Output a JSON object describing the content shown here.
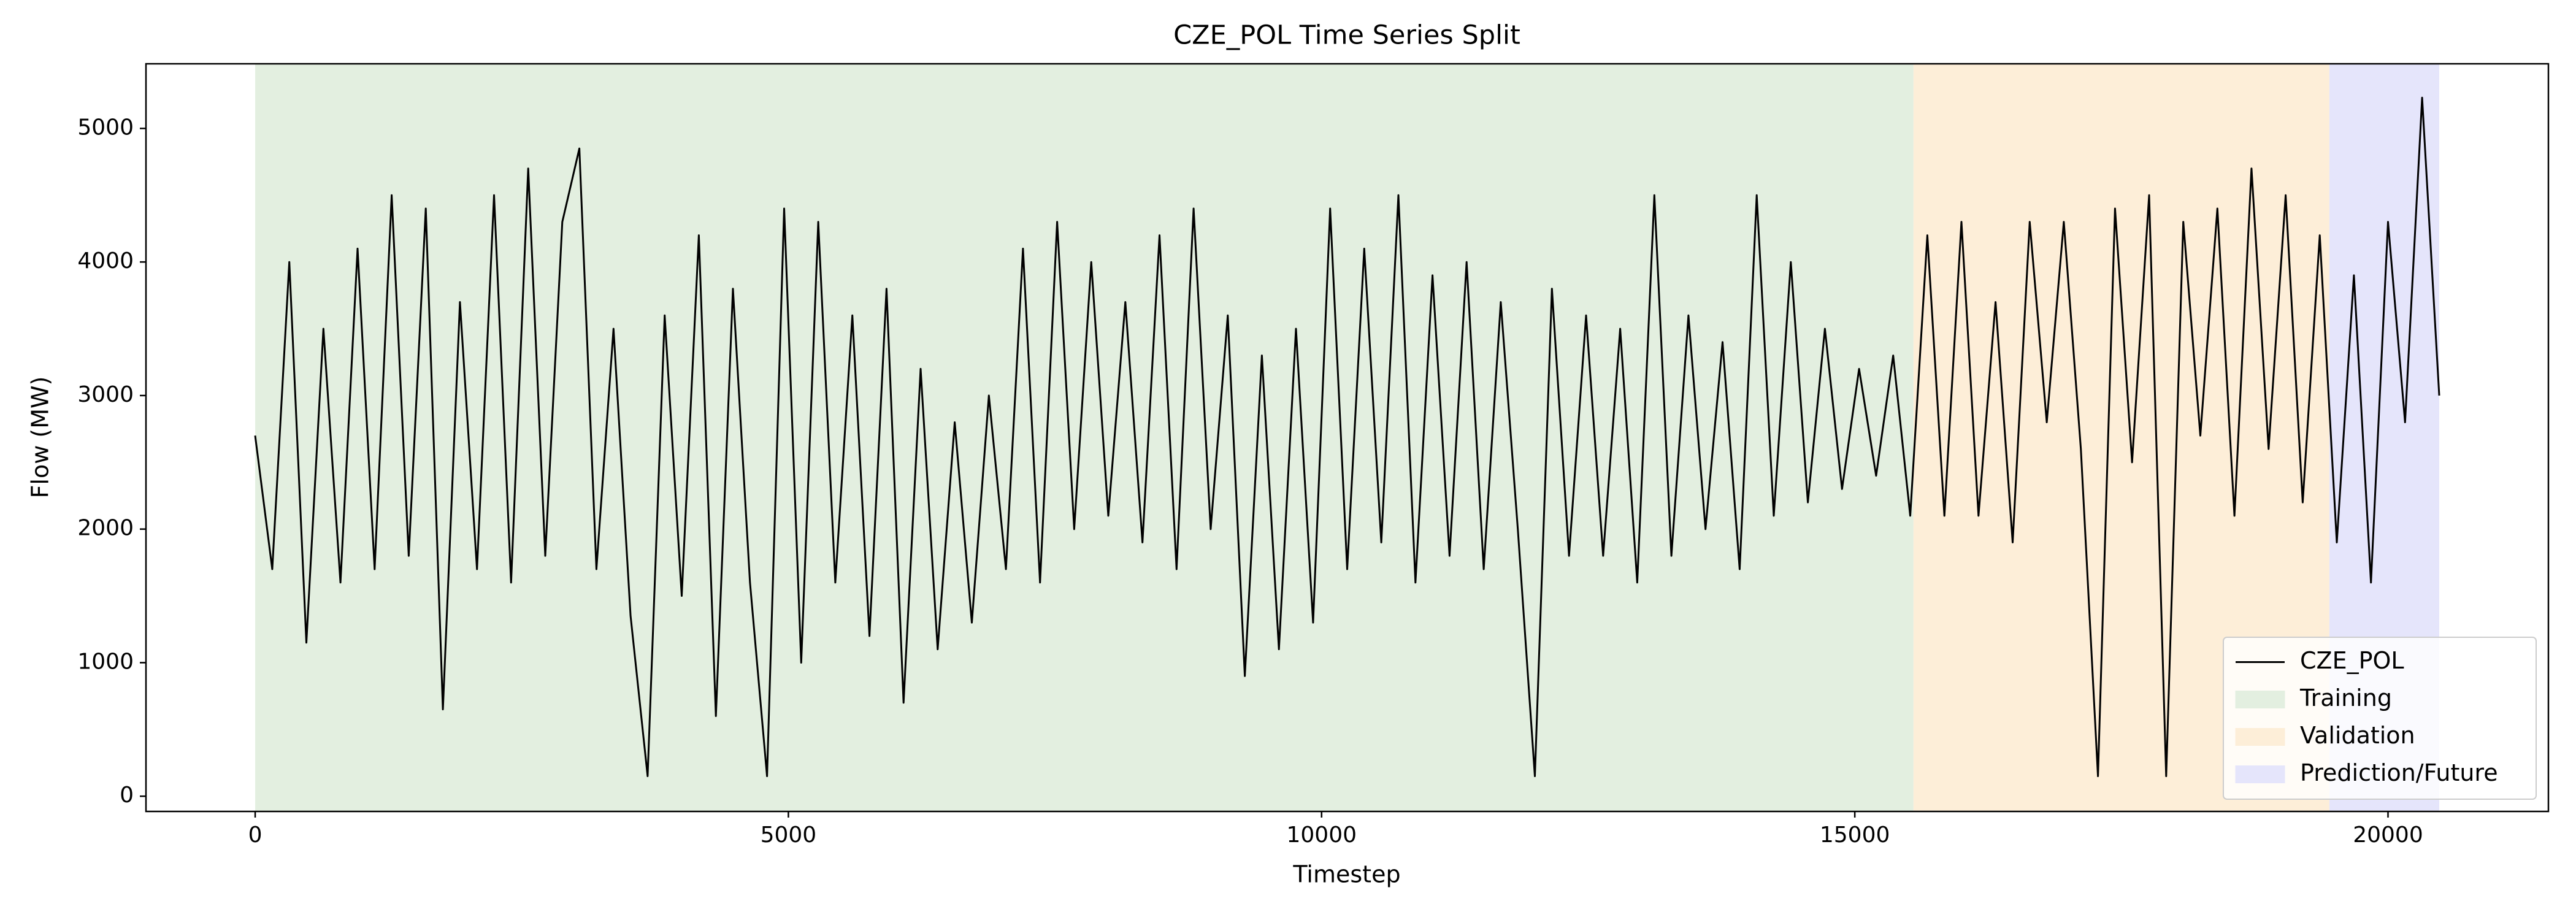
{
  "chart_data": {
    "type": "line",
    "title": "CZE_POL Time Series Split",
    "x_label": "Timestep",
    "y_label": "Flow (MW)",
    "x": [
      0,
      160,
      320,
      480,
      640,
      800,
      960,
      1120,
      1280,
      1440,
      1600,
      1760,
      1920,
      2080,
      2240,
      2400,
      2560,
      2720,
      2880,
      3040,
      3200,
      3360,
      3520,
      3680,
      3840,
      4000,
      4160,
      4320,
      4480,
      4640,
      4800,
      4960,
      5120,
      5280,
      5440,
      5600,
      5760,
      5920,
      6080,
      6240,
      6400,
      6560,
      6720,
      6880,
      7040,
      7200,
      7360,
      7520,
      7680,
      7840,
      8000,
      8160,
      8320,
      8480,
      8640,
      8800,
      8960,
      9120,
      9280,
      9440,
      9600,
      9760,
      9920,
      10080,
      10240,
      10400,
      10560,
      10720,
      10880,
      11040,
      11200,
      11360,
      11520,
      11680,
      11840,
      12000,
      12160,
      12320,
      12480,
      12640,
      12800,
      12960,
      13120,
      13280,
      13440,
      13600,
      13760,
      13920,
      14080,
      14240,
      14400,
      14560,
      14720,
      14880,
      15040,
      15200,
      15360,
      15520,
      15680,
      15840,
      16000,
      16160,
      16320,
      16480,
      16640,
      16800,
      16960,
      17120,
      17280,
      17440,
      17600,
      17760,
      17920,
      18080,
      18240,
      18400,
      18560,
      18720,
      18880,
      19040,
      19200,
      19360,
      19520,
      19680,
      19840,
      20000,
      20160,
      20320,
      20480
    ],
    "series": [
      {
        "name": "CZE_POL",
        "color": "#000000",
        "values": [
          2700,
          1700,
          4000,
          1150,
          3500,
          1600,
          4100,
          1700,
          4500,
          1800,
          4400,
          650,
          3700,
          1700,
          4500,
          1600,
          4700,
          1800,
          4300,
          4850,
          1700,
          3500,
          1350,
          150,
          3600,
          1500,
          4200,
          600,
          3800,
          1600,
          150,
          4400,
          1000,
          4300,
          1600,
          3600,
          1200,
          3800,
          700,
          3200,
          1100,
          2800,
          1300,
          3000,
          1700,
          4100,
          1600,
          4300,
          2000,
          4000,
          2100,
          3700,
          1900,
          4200,
          1700,
          4400,
          2000,
          3600,
          900,
          3300,
          1100,
          3500,
          1300,
          4400,
          1700,
          4100,
          1900,
          4500,
          1600,
          3900,
          1800,
          4000,
          1700,
          3700,
          2000,
          150,
          3800,
          1800,
          3600,
          1800,
          3500,
          1600,
          4500,
          1800,
          3600,
          2000,
          3400,
          1700,
          4500,
          2100,
          4000,
          2200,
          3500,
          2300,
          3200,
          2400,
          3300,
          2100,
          4200,
          2100,
          4300,
          2100,
          3700,
          1900,
          4300,
          2800,
          4300,
          2600,
          150,
          4400,
          2500,
          4500,
          150,
          4300,
          2700,
          4400,
          2100,
          4700,
          2600,
          4500,
          2200,
          4200,
          1900,
          3900,
          1600,
          4300,
          2800,
          5230,
          3000
        ]
      }
    ],
    "spans": [
      {
        "name": "Training",
        "color": "#e3efe0",
        "x": [
          0,
          15550
        ]
      },
      {
        "name": "Validation",
        "color": "#fdeed8",
        "x": [
          15550,
          19450
        ]
      },
      {
        "name": "Prediction/Future",
        "color": "#e5e5fb",
        "x": [
          19450,
          20480
        ]
      }
    ],
    "xlim": [
      -1024,
      21504
    ],
    "ylim": [
      -114,
      5484
    ],
    "xticks": [
      0,
      5000,
      10000,
      15000,
      20000
    ],
    "yticks": [
      0,
      1000,
      2000,
      3000,
      4000,
      5000
    ],
    "grid": false,
    "legend": "lower right"
  }
}
